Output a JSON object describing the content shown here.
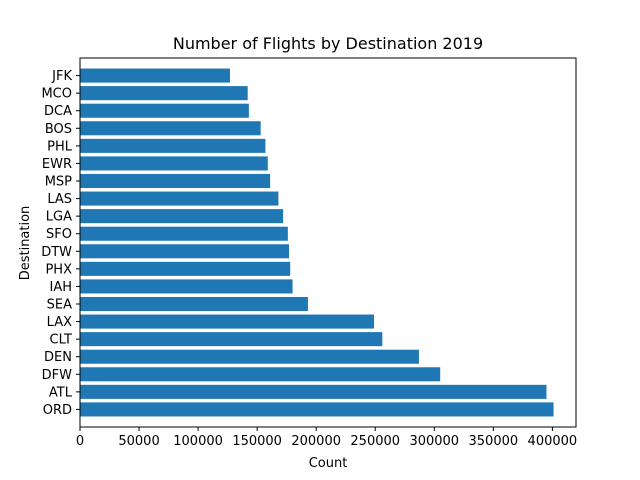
{
  "chart_data": {
    "type": "bar",
    "orientation": "horizontal",
    "title": "Number of Flights by Destination 2019",
    "xlabel": "Count",
    "ylabel": "Destination",
    "xlim": [
      0,
      420000
    ],
    "xticks": [
      0,
      50000,
      100000,
      150000,
      200000,
      250000,
      300000,
      350000,
      400000
    ],
    "xtick_labels": [
      "0",
      "50000",
      "100000",
      "150000",
      "200000",
      "250000",
      "300000",
      "350000",
      "400000"
    ],
    "grid": false,
    "bar_color": "#1f77b4",
    "categories": [
      "ORD",
      "ATL",
      "DFW",
      "DEN",
      "CLT",
      "LAX",
      "SEA",
      "IAH",
      "PHX",
      "DTW",
      "SFO",
      "LGA",
      "LAS",
      "MSP",
      "EWR",
      "PHL",
      "BOS",
      "DCA",
      "MCO",
      "JFK"
    ],
    "values": [
      401000,
      395000,
      305000,
      287000,
      256000,
      249000,
      193000,
      180000,
      178000,
      177000,
      176000,
      172000,
      168000,
      161000,
      159000,
      157000,
      153000,
      143000,
      142000,
      127000
    ]
  }
}
